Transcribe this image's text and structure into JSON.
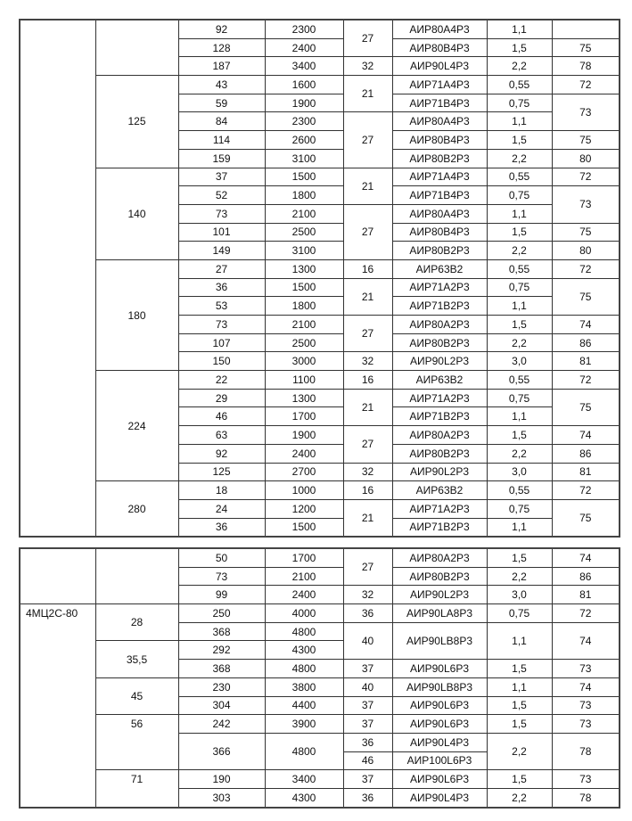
{
  "tables": [
    {
      "rows": [
        [
          {
            "t": "",
            "rs": 28
          },
          {
            "t": "",
            "rs": 3
          },
          {
            "t": "92"
          },
          {
            "t": "2300"
          },
          {
            "t": "27",
            "rs": 2
          },
          {
            "t": "АИР80А4Р3"
          },
          {
            "t": "1,1"
          },
          {
            "t": ""
          }
        ],
        [
          {
            "t": "128"
          },
          {
            "t": "2400"
          },
          {
            "t": "АИР80В4Р3"
          },
          {
            "t": "1,5"
          },
          {
            "t": "75"
          }
        ],
        [
          {
            "t": "187"
          },
          {
            "t": "3400"
          },
          {
            "t": "32"
          },
          {
            "t": "АИР90L4Р3"
          },
          {
            "t": "2,2"
          },
          {
            "t": "78"
          }
        ],
        [
          {
            "t": "125",
            "rs": 5
          },
          {
            "t": "43"
          },
          {
            "t": "1600"
          },
          {
            "t": "21",
            "rs": 2
          },
          {
            "t": "АИР71А4Р3"
          },
          {
            "t": "0,55"
          },
          {
            "t": "72"
          }
        ],
        [
          {
            "t": "59"
          },
          {
            "t": "1900"
          },
          {
            "t": "АИР71В4Р3"
          },
          {
            "t": "0,75"
          },
          {
            "t": "73",
            "rs": 2
          }
        ],
        [
          {
            "t": "84"
          },
          {
            "t": "2300"
          },
          {
            "t": "27",
            "rs": 3
          },
          {
            "t": "АИР80А4Р3"
          },
          {
            "t": "1,1"
          }
        ],
        [
          {
            "t": "114"
          },
          {
            "t": "2600"
          },
          {
            "t": "АИР80В4Р3"
          },
          {
            "t": "1,5"
          },
          {
            "t": "75"
          }
        ],
        [
          {
            "t": "159"
          },
          {
            "t": "3100"
          },
          {
            "t": "АИР80В2Р3"
          },
          {
            "t": "2,2"
          },
          {
            "t": "80"
          }
        ],
        [
          {
            "t": "140",
            "rs": 5
          },
          {
            "t": "37"
          },
          {
            "t": "1500"
          },
          {
            "t": "21",
            "rs": 2
          },
          {
            "t": "АИР71А4Р3"
          },
          {
            "t": "0,55"
          },
          {
            "t": "72"
          }
        ],
        [
          {
            "t": "52"
          },
          {
            "t": "1800"
          },
          {
            "t": "АИР71В4Р3"
          },
          {
            "t": "0,75"
          },
          {
            "t": "73",
            "rs": 2
          }
        ],
        [
          {
            "t": "73"
          },
          {
            "t": "2100"
          },
          {
            "t": "27",
            "rs": 3
          },
          {
            "t": "АИР80А4Р3"
          },
          {
            "t": "1,1"
          }
        ],
        [
          {
            "t": "101"
          },
          {
            "t": "2500"
          },
          {
            "t": "АИР80В4Р3"
          },
          {
            "t": "1,5"
          },
          {
            "t": "75"
          }
        ],
        [
          {
            "t": "149"
          },
          {
            "t": "3100"
          },
          {
            "t": "АИР80В2Р3"
          },
          {
            "t": "2,2"
          },
          {
            "t": "80"
          }
        ],
        [
          {
            "t": "180",
            "rs": 6
          },
          {
            "t": "27"
          },
          {
            "t": "1300"
          },
          {
            "t": "16"
          },
          {
            "t": "АИР63В2"
          },
          {
            "t": "0,55"
          },
          {
            "t": "72"
          }
        ],
        [
          {
            "t": "36"
          },
          {
            "t": "1500"
          },
          {
            "t": "21",
            "rs": 2
          },
          {
            "t": "АИР71А2Р3"
          },
          {
            "t": "0,75"
          },
          {
            "t": "75",
            "rs": 2
          }
        ],
        [
          {
            "t": "53"
          },
          {
            "t": "1800"
          },
          {
            "t": "АИР71В2Р3"
          },
          {
            "t": "1,1"
          }
        ],
        [
          {
            "t": "73"
          },
          {
            "t": "2100"
          },
          {
            "t": "27",
            "rs": 2
          },
          {
            "t": "АИР80А2Р3"
          },
          {
            "t": "1,5"
          },
          {
            "t": "74"
          }
        ],
        [
          {
            "t": "107"
          },
          {
            "t": "2500"
          },
          {
            "t": "АИР80В2Р3"
          },
          {
            "t": "2,2"
          },
          {
            "t": "86"
          }
        ],
        [
          {
            "t": "150"
          },
          {
            "t": "3000"
          },
          {
            "t": "32"
          },
          {
            "t": "АИР90L2Р3"
          },
          {
            "t": "3,0"
          },
          {
            "t": "81"
          }
        ],
        [
          {
            "t": "224",
            "rs": 6
          },
          {
            "t": "22"
          },
          {
            "t": "1100"
          },
          {
            "t": "16"
          },
          {
            "t": "АИР63В2"
          },
          {
            "t": "0,55"
          },
          {
            "t": "72"
          }
        ],
        [
          {
            "t": "29"
          },
          {
            "t": "1300"
          },
          {
            "t": "21",
            "rs": 2
          },
          {
            "t": "АИР71А2Р3"
          },
          {
            "t": "0,75"
          },
          {
            "t": "75",
            "rs": 2
          }
        ],
        [
          {
            "t": "46"
          },
          {
            "t": "1700"
          },
          {
            "t": "АИР71В2Р3"
          },
          {
            "t": "1,1"
          }
        ],
        [
          {
            "t": "63"
          },
          {
            "t": "1900"
          },
          {
            "t": "27",
            "rs": 2
          },
          {
            "t": "АИР80А2Р3"
          },
          {
            "t": "1,5"
          },
          {
            "t": "74"
          }
        ],
        [
          {
            "t": "92"
          },
          {
            "t": "2400"
          },
          {
            "t": "АИР80В2Р3"
          },
          {
            "t": "2,2"
          },
          {
            "t": "86"
          }
        ],
        [
          {
            "t": "125"
          },
          {
            "t": "2700"
          },
          {
            "t": "32"
          },
          {
            "t": "АИР90L2Р3"
          },
          {
            "t": "3,0"
          },
          {
            "t": "81"
          }
        ],
        [
          {
            "t": "280",
            "rs": 3
          },
          {
            "t": "18"
          },
          {
            "t": "1000"
          },
          {
            "t": "16"
          },
          {
            "t": "АИР63В2"
          },
          {
            "t": "0,55"
          },
          {
            "t": "72"
          }
        ],
        [
          {
            "t": "24"
          },
          {
            "t": "1200"
          },
          {
            "t": "21",
            "rs": 2
          },
          {
            "t": "АИР71А2Р3"
          },
          {
            "t": "0,75"
          },
          {
            "t": "75",
            "rs": 2
          }
        ],
        [
          {
            "t": "36"
          },
          {
            "t": "1500"
          },
          {
            "t": "АИР71В2Р3"
          },
          {
            "t": "1,1"
          }
        ]
      ]
    },
    {
      "rows": [
        [
          {
            "t": "",
            "rs": 3
          },
          {
            "t": "",
            "rs": 3
          },
          {
            "t": "50"
          },
          {
            "t": "1700"
          },
          {
            "t": "27",
            "rs": 2
          },
          {
            "t": "АИР80А2Р3"
          },
          {
            "t": "1,5"
          },
          {
            "t": "74"
          }
        ],
        [
          {
            "t": "73"
          },
          {
            "t": "2100"
          },
          {
            "t": "АИР80В2Р3"
          },
          {
            "t": "2,2"
          },
          {
            "t": "86"
          }
        ],
        [
          {
            "t": "99"
          },
          {
            "t": "2400"
          },
          {
            "t": "32"
          },
          {
            "t": "АИР90L2Р3"
          },
          {
            "t": "3,0"
          },
          {
            "t": "81"
          }
        ],
        [
          {
            "t": "4МЦ2С-80",
            "rs": 11,
            "v": "top",
            "first": true
          },
          {
            "t": "28",
            "rs": 2
          },
          {
            "t": "250"
          },
          {
            "t": "4000"
          },
          {
            "t": "36"
          },
          {
            "t": "АИР90LA8Р3"
          },
          {
            "t": "0,75"
          },
          {
            "t": "72"
          }
        ],
        [
          {
            "t": "368"
          },
          {
            "t": "4800"
          },
          {
            "t": "40",
            "rs": 2
          },
          {
            "t": "АИР90LB8Р3",
            "rs": 2
          },
          {
            "t": "1,1",
            "rs": 2
          },
          {
            "t": "74",
            "rs": 2
          }
        ],
        [
          {
            "t": "35,5",
            "rs": 2
          },
          {
            "t": "292"
          },
          {
            "t": "4300"
          }
        ],
        [
          {
            "t": "368"
          },
          {
            "t": "4800"
          },
          {
            "t": "37"
          },
          {
            "t": "АИР90L6Р3"
          },
          {
            "t": "1,5"
          },
          {
            "t": "73"
          }
        ],
        [
          {
            "t": "45",
            "rs": 2
          },
          {
            "t": "230"
          },
          {
            "t": "3800"
          },
          {
            "t": "40"
          },
          {
            "t": "АИР90LB8Р3"
          },
          {
            "t": "1,1"
          },
          {
            "t": "74"
          }
        ],
        [
          {
            "t": "304"
          },
          {
            "t": "4400"
          },
          {
            "t": "37"
          },
          {
            "t": "АИР90L6Р3"
          },
          {
            "t": "1,5"
          },
          {
            "t": "73"
          }
        ],
        [
          {
            "t": "56",
            "rs": 3,
            "v": "top"
          },
          {
            "t": "242"
          },
          {
            "t": "3900"
          },
          {
            "t": "37"
          },
          {
            "t": "АИР90L6Р3"
          },
          {
            "t": "1,5"
          },
          {
            "t": "73"
          }
        ],
        [
          {
            "t": "366",
            "rs": 2
          },
          {
            "t": "4800",
            "rs": 2
          },
          {
            "t": "36"
          },
          {
            "t": "АИР90L4Р3"
          },
          {
            "t": "2,2",
            "rs": 2
          },
          {
            "t": "78",
            "rs": 2
          }
        ],
        [
          {
            "t": "46"
          },
          {
            "t": "АИР100L6Р3"
          }
        ],
        [
          {
            "t": "71",
            "rs": 2,
            "v": "top"
          },
          {
            "t": "190"
          },
          {
            "t": "3400"
          },
          {
            "t": "37"
          },
          {
            "t": "АИР90L6Р3"
          },
          {
            "t": "1,5"
          },
          {
            "t": "73"
          }
        ],
        [
          {
            "t": "303"
          },
          {
            "t": "4300"
          },
          {
            "t": "36"
          },
          {
            "t": "АИР90L4Р3"
          },
          {
            "t": "2,2"
          },
          {
            "t": "78"
          }
        ]
      ]
    }
  ]
}
